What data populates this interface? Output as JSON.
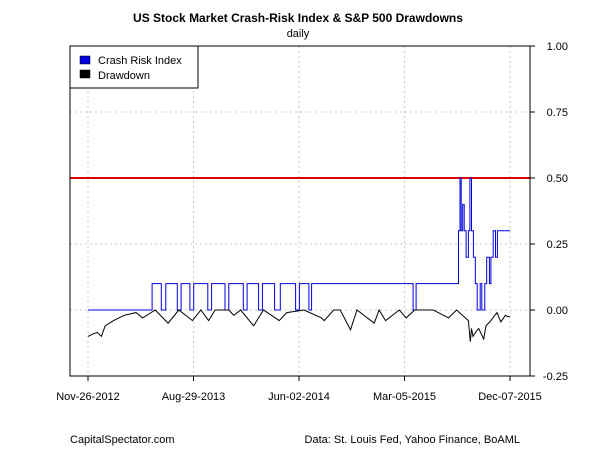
{
  "title": "US Stock Market Crash-Risk Index & S&P 500 Drawdowns",
  "subtitle": "daily",
  "footer_left": "CapitalSpectator.com",
  "footer_right": "Data: St. Louis Fed, Yahoo Finance, BoAML",
  "chart_data": {
    "type": "line",
    "title": "US Stock Market Crash-Risk Index & S&P 500 Drawdowns",
    "subtitle": "daily",
    "x_tick_labels": [
      "Nov-26-2012",
      "Aug-29-2013",
      "Jun-02-2014",
      "Mar-05-2015",
      "Dec-07-2015"
    ],
    "x_range": [
      "2012-11-26",
      "2015-12-07"
    ],
    "y_ticks": [
      1.0,
      0.75,
      0.5,
      0.25,
      0.0,
      -0.25
    ],
    "y_tick_labels": [
      "1.00",
      "0.75",
      "0.50",
      "0.25",
      "0.00",
      "-0.25"
    ],
    "ylim": [
      -0.25,
      1.0
    ],
    "y_axis_side": "right",
    "grid": true,
    "legend_position": "top-left",
    "reference_line": {
      "y": 0.5,
      "color": "#e00000"
    },
    "series": [
      {
        "name": "Crash Risk Index",
        "color": "#0000e0",
        "points": [
          [
            "2012-11-26",
            0.0
          ],
          [
            "2013-05-13",
            0.0
          ],
          [
            "2013-05-13",
            0.1
          ],
          [
            "2013-06-06",
            0.1
          ],
          [
            "2013-06-06",
            0.0
          ],
          [
            "2013-06-18",
            0.0
          ],
          [
            "2013-06-18",
            0.1
          ],
          [
            "2013-07-18",
            0.1
          ],
          [
            "2013-07-18",
            0.0
          ],
          [
            "2013-07-28",
            0.0
          ],
          [
            "2013-07-28",
            0.1
          ],
          [
            "2013-08-20",
            0.1
          ],
          [
            "2013-08-20",
            0.0
          ],
          [
            "2013-08-30",
            0.0
          ],
          [
            "2013-08-30",
            0.1
          ],
          [
            "2013-10-06",
            0.1
          ],
          [
            "2013-10-06",
            0.0
          ],
          [
            "2013-10-16",
            0.0
          ],
          [
            "2013-10-16",
            0.1
          ],
          [
            "2013-11-20",
            0.1
          ],
          [
            "2013-11-20",
            0.0
          ],
          [
            "2013-11-30",
            0.0
          ],
          [
            "2013-11-30",
            0.1
          ],
          [
            "2014-01-07",
            0.1
          ],
          [
            "2014-01-07",
            0.0
          ],
          [
            "2014-01-17",
            0.0
          ],
          [
            "2014-01-17",
            0.1
          ],
          [
            "2014-02-16",
            0.1
          ],
          [
            "2014-02-16",
            0.0
          ],
          [
            "2014-02-26",
            0.0
          ],
          [
            "2014-02-26",
            0.1
          ],
          [
            "2014-03-30",
            0.1
          ],
          [
            "2014-03-30",
            0.0
          ],
          [
            "2014-04-14",
            0.0
          ],
          [
            "2014-04-14",
            0.1
          ],
          [
            "2014-05-24",
            0.1
          ],
          [
            "2014-05-24",
            0.0
          ],
          [
            "2014-06-03",
            0.0
          ],
          [
            "2014-06-03",
            0.1
          ],
          [
            "2014-06-28",
            0.1
          ],
          [
            "2014-06-28",
            0.0
          ],
          [
            "2014-07-05",
            0.0
          ],
          [
            "2014-07-05",
            0.1
          ],
          [
            "2015-03-28",
            0.1
          ],
          [
            "2015-03-28",
            0.0
          ],
          [
            "2015-04-05",
            0.0
          ],
          [
            "2015-04-05",
            0.1
          ],
          [
            "2015-07-25",
            0.1
          ],
          [
            "2015-07-25",
            0.3
          ],
          [
            "2015-07-29",
            0.3
          ],
          [
            "2015-07-29",
            0.5
          ],
          [
            "2015-08-01",
            0.5
          ],
          [
            "2015-08-01",
            0.3
          ],
          [
            "2015-08-05",
            0.3
          ],
          [
            "2015-08-05",
            0.4
          ],
          [
            "2015-08-09",
            0.4
          ],
          [
            "2015-08-09",
            0.3
          ],
          [
            "2015-08-14",
            0.3
          ],
          [
            "2015-08-14",
            0.2
          ],
          [
            "2015-08-20",
            0.2
          ],
          [
            "2015-08-20",
            0.3
          ],
          [
            "2015-08-24",
            0.3
          ],
          [
            "2015-08-24",
            0.5
          ],
          [
            "2015-08-28",
            0.5
          ],
          [
            "2015-08-28",
            0.3
          ],
          [
            "2015-09-02",
            0.3
          ],
          [
            "2015-09-02",
            0.2
          ],
          [
            "2015-09-07",
            0.2
          ],
          [
            "2015-09-07",
            0.1
          ],
          [
            "2015-09-12",
            0.1
          ],
          [
            "2015-09-12",
            0.0
          ],
          [
            "2015-09-20",
            0.0
          ],
          [
            "2015-09-20",
            0.1
          ],
          [
            "2015-09-24",
            0.1
          ],
          [
            "2015-09-24",
            0.0
          ],
          [
            "2015-10-02",
            0.0
          ],
          [
            "2015-10-02",
            0.1
          ],
          [
            "2015-10-07",
            0.1
          ],
          [
            "2015-10-07",
            0.2
          ],
          [
            "2015-10-14",
            0.2
          ],
          [
            "2015-10-14",
            0.1
          ],
          [
            "2015-10-18",
            0.1
          ],
          [
            "2015-10-18",
            0.2
          ],
          [
            "2015-10-24",
            0.2
          ],
          [
            "2015-10-24",
            0.3
          ],
          [
            "2015-10-30",
            0.3
          ],
          [
            "2015-10-30",
            0.2
          ],
          [
            "2015-11-04",
            0.2
          ],
          [
            "2015-11-04",
            0.3
          ],
          [
            "2015-12-07",
            0.3
          ]
        ]
      },
      {
        "name": "Drawdown",
        "color": "#000000",
        "points": [
          [
            "2012-11-26",
            -0.1
          ],
          [
            "2012-12-10",
            -0.09
          ],
          [
            "2012-12-20",
            -0.085
          ],
          [
            "2012-12-31",
            -0.1
          ],
          [
            "2013-01-10",
            -0.06
          ],
          [
            "2013-02-01",
            -0.04
          ],
          [
            "2013-03-01",
            -0.02
          ],
          [
            "2013-04-01",
            -0.01
          ],
          [
            "2013-04-18",
            -0.03
          ],
          [
            "2013-05-21",
            0.0
          ],
          [
            "2013-06-24",
            -0.05
          ],
          [
            "2013-07-22",
            0.0
          ],
          [
            "2013-08-27",
            -0.04
          ],
          [
            "2013-09-18",
            0.0
          ],
          [
            "2013-10-08",
            -0.04
          ],
          [
            "2013-10-25",
            0.0
          ],
          [
            "2013-11-30",
            0.0
          ],
          [
            "2013-12-13",
            -0.02
          ],
          [
            "2013-12-31",
            0.0
          ],
          [
            "2014-02-03",
            -0.06
          ],
          [
            "2014-03-01",
            0.0
          ],
          [
            "2014-04-11",
            -0.04
          ],
          [
            "2014-05-01",
            -0.01
          ],
          [
            "2014-06-15",
            0.0
          ],
          [
            "2014-07-31",
            -0.03
          ],
          [
            "2014-08-07",
            -0.04
          ],
          [
            "2014-09-01",
            0.0
          ],
          [
            "2014-09-18",
            0.0
          ],
          [
            "2014-10-15",
            -0.075
          ],
          [
            "2014-11-01",
            0.0
          ],
          [
            "2014-12-16",
            -0.05
          ],
          [
            "2014-12-29",
            0.0
          ],
          [
            "2015-01-15",
            -0.04
          ],
          [
            "2015-02-20",
            0.0
          ],
          [
            "2015-03-10",
            -0.03
          ],
          [
            "2015-04-01",
            0.0
          ],
          [
            "2015-05-20",
            0.0
          ],
          [
            "2015-06-29",
            -0.03
          ],
          [
            "2015-07-20",
            0.0
          ],
          [
            "2015-08-20",
            -0.04
          ],
          [
            "2015-08-25",
            -0.12
          ],
          [
            "2015-08-28",
            -0.07
          ],
          [
            "2015-09-01",
            -0.1
          ],
          [
            "2015-09-10",
            -0.08
          ],
          [
            "2015-09-16",
            -0.07
          ],
          [
            "2015-09-29",
            -0.11
          ],
          [
            "2015-10-05",
            -0.06
          ],
          [
            "2015-10-15",
            -0.045
          ],
          [
            "2015-10-23",
            -0.03
          ],
          [
            "2015-11-03",
            -0.01
          ],
          [
            "2015-11-13",
            -0.045
          ],
          [
            "2015-11-25",
            -0.02
          ],
          [
            "2015-12-01",
            -0.025
          ],
          [
            "2015-12-07",
            -0.025
          ]
        ]
      }
    ]
  }
}
